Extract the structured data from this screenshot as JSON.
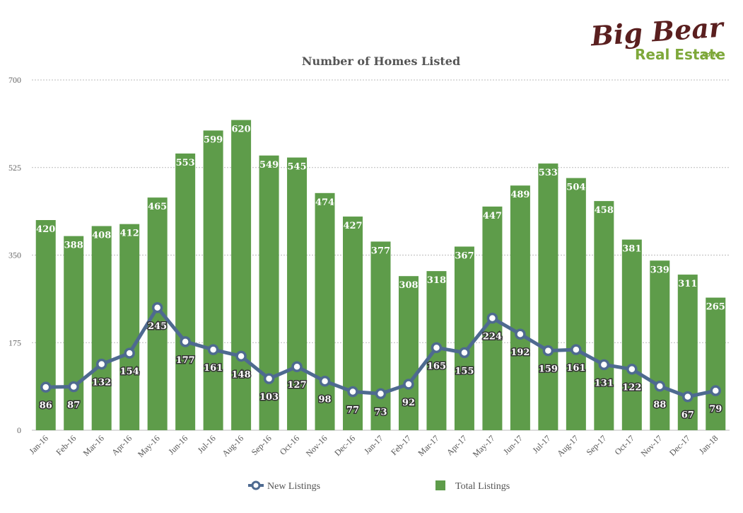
{
  "logo": {
    "line1": "Big Bear",
    "line2": "Real Estate",
    "suffix": ".com"
  },
  "colors": {
    "bar": "#5e9c4a",
    "line": "#4e6a90",
    "marker_fill": "#ffffff",
    "grid": "#bbbbbb"
  },
  "chart_data": {
    "type": "bar",
    "title": "Number of Homes Listed",
    "xlabel": "",
    "ylabel": "",
    "ylim": [
      0,
      700
    ],
    "yticks": [
      0,
      175,
      350,
      525,
      700
    ],
    "grid": true,
    "legend_position": "bottom",
    "categories": [
      "Jan-16",
      "Feb-16",
      "Mar-16",
      "Apr-16",
      "May-16",
      "Jun-16",
      "Jul-16",
      "Aug-16",
      "Sep-16",
      "Oct-16",
      "Nov-16",
      "Dec-16",
      "Jan-17",
      "Feb-17",
      "Mar-17",
      "Apr-17",
      "May-17",
      "Jun-17",
      "Jul-17",
      "Aug-17",
      "Sep-17",
      "Oct-17",
      "Nov-17",
      "Dec-17",
      "Jan-18"
    ],
    "series": [
      {
        "name": "New Listings",
        "type": "line",
        "values": [
          86,
          87,
          132,
          154,
          245,
          177,
          161,
          148,
          103,
          127,
          98,
          77,
          73,
          92,
          165,
          155,
          224,
          192,
          159,
          161,
          131,
          122,
          88,
          67,
          79
        ]
      },
      {
        "name": "Total Listings",
        "type": "bar",
        "values": [
          420,
          388,
          408,
          412,
          465,
          553,
          599,
          620,
          549,
          545,
          474,
          427,
          377,
          308,
          318,
          367,
          447,
          489,
          533,
          504,
          458,
          381,
          339,
          311,
          265
        ]
      }
    ]
  }
}
